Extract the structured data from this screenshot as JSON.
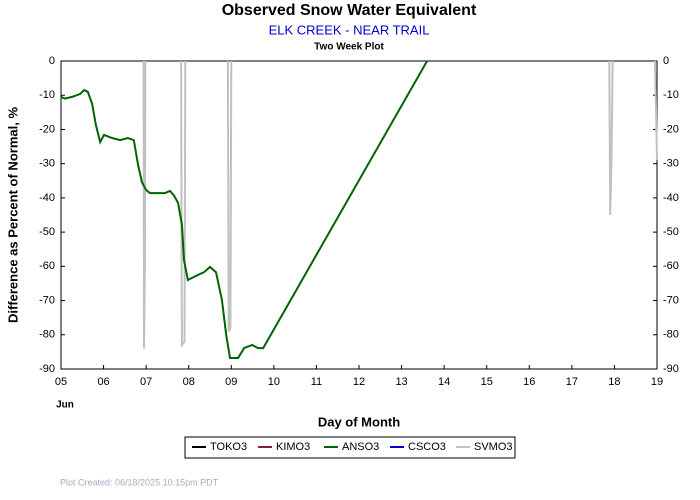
{
  "chart_data": {
    "type": "line",
    "title": "Observed Snow Water Equivalent",
    "subtitle": "ELK CREEK - NEAR TRAIL",
    "plot_label": "Two Week Plot",
    "x_label": "Day of Month",
    "x_sublabel": "Jun",
    "y_label": "Difference as Percent of Normal, %",
    "footer": "Plot Created: 06/18/2025 10:15pm PDT",
    "xlim": [
      5,
      19
    ],
    "xticks": [
      {
        "value": 5,
        "label": "05"
      },
      {
        "value": 6,
        "label": "06"
      },
      {
        "value": 7,
        "label": "07"
      },
      {
        "value": 8,
        "label": "08"
      },
      {
        "value": 9,
        "label": "09"
      },
      10,
      11,
      12,
      13,
      14,
      15,
      16,
      17,
      18,
      19
    ],
    "ylim": [
      -90,
      0
    ],
    "yticks": [
      0,
      -10,
      -20,
      -30,
      -40,
      -50,
      -60,
      -70,
      -80,
      -90
    ],
    "series": [
      {
        "name": "TOKO3",
        "color": "#000000",
        "x": [],
        "values": []
      },
      {
        "name": "KIMO3",
        "color": "#8b1a4a",
        "x": [],
        "values": []
      },
      {
        "name": "ANSO3",
        "color": "#006400",
        "x": [
          5.0,
          5.09,
          5.26,
          5.45,
          5.54,
          5.63,
          5.73,
          5.82,
          5.92,
          6.01,
          6.2,
          6.39,
          6.57,
          6.71,
          6.81,
          6.9,
          7.0,
          7.09,
          7.44,
          7.56,
          7.65,
          7.75,
          7.84,
          7.89,
          7.98,
          8.17,
          8.36,
          8.5,
          8.64,
          8.78,
          8.88,
          8.97,
          9.16,
          9.3,
          9.49,
          9.63,
          9.75,
          13.6
        ],
        "values": [
          -10.5,
          -11,
          -10.5,
          -9.6,
          -8.5,
          -9,
          -12.5,
          -18.7,
          -23.7,
          -21.6,
          -22.5,
          -23.1,
          -22.5,
          -23.1,
          -30.4,
          -35.4,
          -37.7,
          -38.6,
          -38.6,
          -38,
          -39.2,
          -41.5,
          -47.9,
          -58.2,
          -64,
          -62.8,
          -61.7,
          -60.2,
          -61.7,
          -69.8,
          -80,
          -86.8,
          -86.8,
          -83.9,
          -83,
          -83.9,
          -83.9,
          0
        ]
      },
      {
        "name": "CSCO3",
        "color": "#0000cd",
        "x": [],
        "values": []
      },
      {
        "name": "SVMO3",
        "color": "#c0c0c0",
        "x": [
          6.94,
          6.95,
          6.97,
          6.98,
          null,
          7.82,
          7.84,
          7.9,
          7.92,
          null,
          8.92,
          8.94,
          8.98,
          9.0,
          null,
          17.88,
          17.9,
          17.93,
          17.96,
          null,
          18.95,
          18.98,
          19.0
        ],
        "values": [
          0,
          -84,
          -60,
          0,
          null,
          0,
          -83,
          -82,
          0,
          null,
          0,
          -79,
          -78,
          0,
          null,
          0,
          -45,
          -30,
          0,
          null,
          0,
          -15,
          -29
        ]
      }
    ]
  }
}
